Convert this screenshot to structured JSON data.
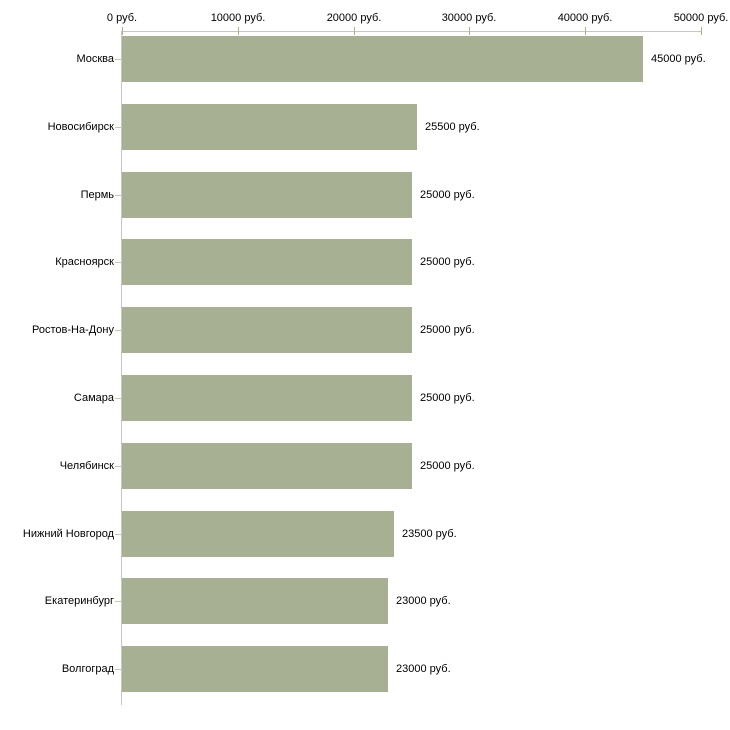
{
  "chart_data": {
    "type": "bar",
    "orientation": "horizontal",
    "categories": [
      "Москва",
      "Новосибирск",
      "Пермь",
      "Красноярск",
      "Ростов-На-Дону",
      "Самара",
      "Челябинск",
      "Нижний Новгород",
      "Екатеринбург",
      "Волгоград"
    ],
    "values": [
      45000,
      25500,
      25000,
      25000,
      25000,
      25000,
      25000,
      23500,
      23000,
      23000
    ],
    "value_labels": [
      "45000 руб.",
      "25500 руб.",
      "25000 руб.",
      "25000 руб.",
      "25000 руб.",
      "25000 руб.",
      "25000 руб.",
      "23500 руб.",
      "23000 руб.",
      "23000 руб."
    ],
    "unit": "руб.",
    "x_axis": {
      "position": "top",
      "range": [
        0,
        50000
      ],
      "ticks": [
        0,
        10000,
        20000,
        30000,
        40000,
        50000
      ],
      "tick_labels": [
        "0 руб.",
        "10000 руб.",
        "20000 руб.",
        "30000 руб.",
        "40000 руб.",
        "50000 руб."
      ]
    },
    "grid": false,
    "legend": false,
    "colors": {
      "bar": "#a8b093",
      "axis_line": "#c6c6c6",
      "x_tick": "#b1b183",
      "category_tick": "#c6caa5",
      "text": "#000000",
      "background": "#ffffff"
    }
  }
}
